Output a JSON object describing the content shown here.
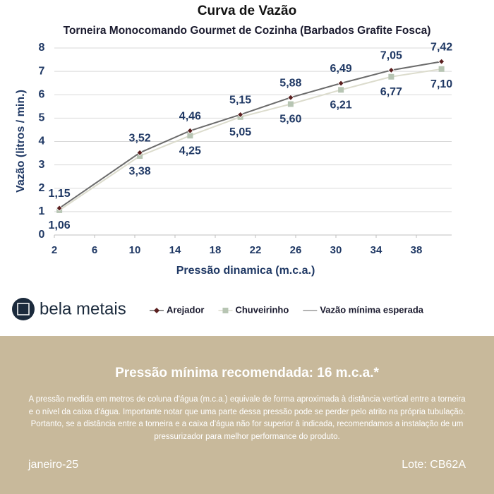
{
  "chart_data": {
    "type": "line",
    "title": "Curva de Vazão",
    "subtitle": "Torneira Monocomando Gourmet de Cozinha (Barbados Grafite Fosca)",
    "x_label": "Pressão dinamica (m.c.a.)",
    "y_label": "Vazão (litros / min.)",
    "x": [
      2.5,
      10.5,
      15.5,
      20.5,
      25.5,
      30.5,
      35.5,
      40.5
    ],
    "series": [
      {
        "name": "Arejador",
        "color": "#6b6b6b",
        "marker_color": "#5a1f1f",
        "values": [
          1.15,
          3.52,
          4.46,
          5.15,
          5.88,
          6.49,
          7.05,
          7.42
        ],
        "value_labels": [
          "1,15",
          "3,52",
          "4,46",
          "5,15",
          "5,88",
          "6,49",
          "7,05",
          "7,42"
        ]
      },
      {
        "name": "Chuveirinho",
        "color": "#dcdccd",
        "marker_color": "#b7c5b3",
        "values": [
          1.06,
          3.38,
          4.25,
          5.05,
          5.6,
          6.21,
          6.77,
          7.1
        ],
        "value_labels": [
          "1,06",
          "3,38",
          "4,25",
          "5,05",
          "5,60",
          "6,21",
          "6,77",
          "7,10"
        ]
      },
      {
        "name": "Vazão mínima esperada",
        "color": "#9a9a9a"
      }
    ],
    "xlim": [
      2,
      42
    ],
    "xticks": [
      2,
      6,
      10,
      14,
      18,
      22,
      26,
      30,
      34,
      38
    ],
    "ylim": [
      0,
      8
    ],
    "yticks": [
      0,
      1,
      2,
      3,
      4,
      5,
      6,
      7,
      8
    ],
    "grid": true
  },
  "brand": "bela metais",
  "footer": {
    "heading": "Pressão mínima recomendada: 16 m.c.a.*",
    "text": "A pressão medida em metros de coluna d'água (m.c.a.) equivale de forma aproximada à distância vertical entre a torneira e o nível da caixa d'água. Importante notar que uma parte dessa pressão pode se perder pelo atrito na própria tubulação. Portanto, se a distância entre a torneira e a caixa d'água não for superior à indicada, recomendamos a instalação de um pressurizador para melhor performance do produto.",
    "date": "janeiro-25",
    "lot": "Lote: CB62A"
  }
}
